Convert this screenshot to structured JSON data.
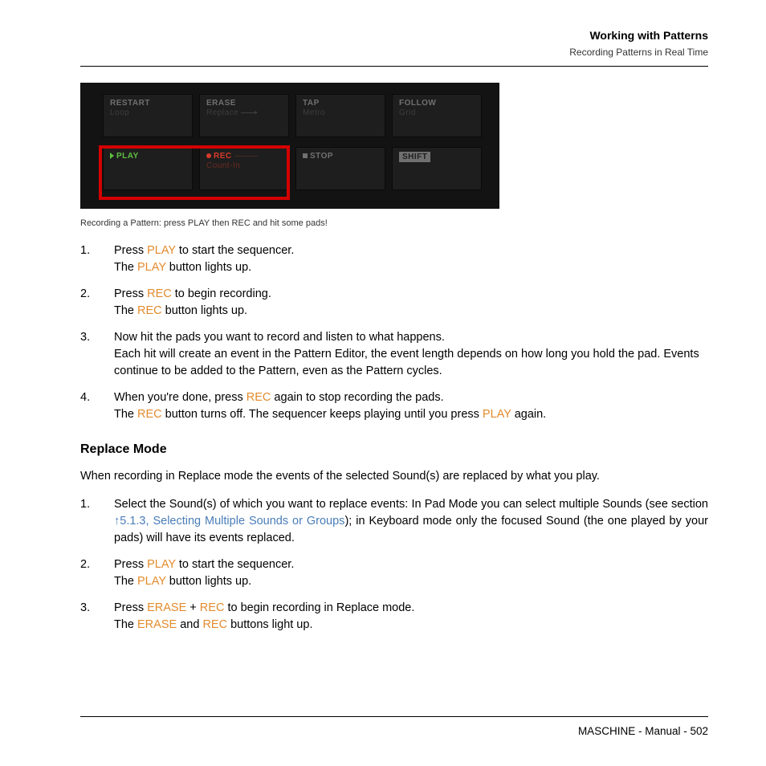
{
  "header": {
    "title": "Working with Patterns",
    "subtitle": "Recording Patterns in Real Time"
  },
  "panel": {
    "buttons": [
      {
        "label": "RESTART",
        "sub": "Loop"
      },
      {
        "label": "ERASE",
        "sub": "Replace"
      },
      {
        "label": "TAP",
        "sub": "Metro"
      },
      {
        "label": "FOLLOW",
        "sub": "Grid"
      },
      {
        "label": "PLAY",
        "sub": ""
      },
      {
        "label": "REC",
        "sub": "Count-In"
      },
      {
        "label": "STOP",
        "sub": ""
      },
      {
        "label": "SHIFT",
        "sub": ""
      }
    ],
    "highlight_color": "#d40000",
    "background_color": "#131313",
    "button_color": "#1e1e1e"
  },
  "caption": "Recording a Pattern: press PLAY then REC and hit some pads!",
  "colors": {
    "keyword": "#e38b2c",
    "link": "#4a7db8",
    "play_green": "#5fbf3f",
    "rec_red": "#d83a2a"
  },
  "steps1": {
    "s1a": "Press ",
    "s1b": " to start the sequencer.",
    "s1c": "The ",
    "s1d": " button lights up.",
    "s2a": "Press ",
    "s2b": " to begin recording.",
    "s2c": "The ",
    "s2d": " button lights up.",
    "s3a": "Now hit the pads you want to record and listen to what happens.",
    "s3b": "Each hit will create an event in the Pattern Editor, the event length depends on how long you hold the pad. Events continue to be added to the Pattern, even as the Pattern cycles.",
    "s4a": "When you're done, press ",
    "s4b": " again to stop recording the pads.",
    "s4c": "The ",
    "s4d": " button turns off. The sequencer keeps playing until you press ",
    "s4e": " again."
  },
  "kw": {
    "play": "PLAY",
    "rec": "REC",
    "erase": "ERASE"
  },
  "section_heading": "Replace Mode",
  "replace_intro": "When recording in Replace mode the events of the selected Sound(s) are replaced by what you play.",
  "steps2": {
    "s1a": "Select the Sound(s) of which you want to replace events: In Pad Mode you can select multiple Sounds (see section ",
    "s1link": "5.1.3, Selecting Multiple Sounds or Groups",
    "s1b": "); in Keyboard mode only the focused Sound (the one played by your pads) will have its events replaced.",
    "s2a": "Press ",
    "s2b": " to start the sequencer.",
    "s2c": "The ",
    "s2d": " button lights up.",
    "s3a": "Press ",
    "s3b": " + ",
    "s3c": " to begin recording in Replace mode.",
    "s3d": "The ",
    "s3e": " and ",
    "s3f": " buttons light up."
  },
  "footer": "MASCHINE - Manual - 502"
}
